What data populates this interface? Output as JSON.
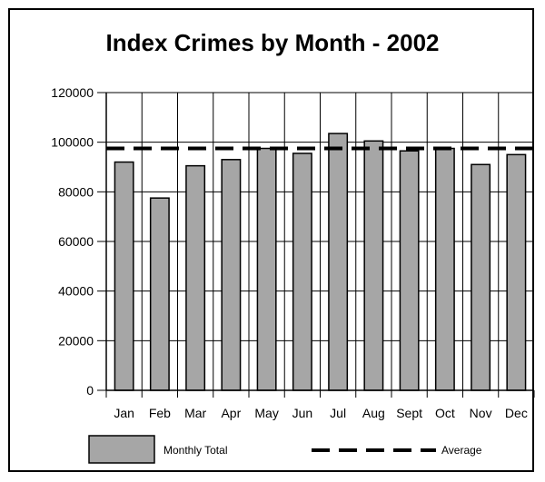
{
  "chart_data": {
    "type": "bar",
    "title": "Index Crimes by Month - 2002",
    "xlabel": "",
    "ylabel": "",
    "categories": [
      "Jan",
      "Feb",
      "Mar",
      "Apr",
      "May",
      "Jun",
      "Jul",
      "Aug",
      "Sept",
      "Oct",
      "Nov",
      "Dec"
    ],
    "series": [
      {
        "name": "Monthly Total",
        "values": [
          92000,
          77500,
          90500,
          93000,
          97500,
          95500,
          103500,
          100500,
          96500,
          97500,
          91000,
          95000
        ],
        "color": "#a6a6a6"
      }
    ],
    "reference_line": {
      "name": "Average",
      "value": 97500,
      "style": "dashed",
      "color": "#000000"
    },
    "ylim": [
      0,
      120000
    ],
    "yticks": [
      0,
      20000,
      40000,
      60000,
      80000,
      100000,
      120000
    ],
    "ytick_labels": [
      "0",
      "20000",
      "40000",
      "60000",
      "80000",
      "100000",
      "120000"
    ],
    "grid": true,
    "legend_placement": "bottom"
  }
}
